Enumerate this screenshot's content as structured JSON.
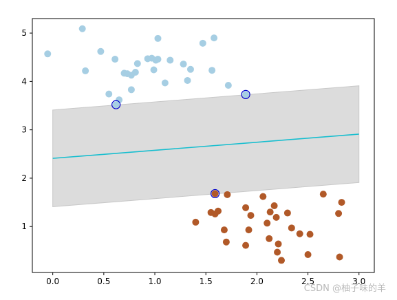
{
  "watermark": "CSDN @柚子味的羊",
  "colors": {
    "class_a": "#a6cee3",
    "class_b": "#b15928",
    "decision_line": "#17becf",
    "margin_fill": "#dcdcdc",
    "margin_edge": "#c8c8c8",
    "support_edge": "#0000cc"
  },
  "chart_data": {
    "type": "scatter",
    "title": "",
    "xlabel": "",
    "ylabel": "",
    "xlim": [
      -0.2,
      3.15
    ],
    "ylim": [
      0.05,
      5.3
    ],
    "xticks": [
      "0.0",
      "0.5",
      "1.0",
      "1.5",
      "2.0",
      "2.5",
      "3.0"
    ],
    "yticks": [
      "1",
      "2",
      "3",
      "4",
      "5"
    ],
    "grid": false,
    "series": [
      {
        "class": "upper-cluster",
        "color": "#a6cee3",
        "points": [
          [
            -0.05,
            4.57
          ],
          [
            0.29,
            5.09
          ],
          [
            0.32,
            4.22
          ],
          [
            0.47,
            4.62
          ],
          [
            0.55,
            3.74
          ],
          [
            0.61,
            4.46
          ],
          [
            0.65,
            3.62
          ],
          [
            0.7,
            4.17
          ],
          [
            0.73,
            4.16
          ],
          [
            0.77,
            4.13
          ],
          [
            0.77,
            3.83
          ],
          [
            0.81,
            4.19
          ],
          [
            0.83,
            4.37
          ],
          [
            0.93,
            4.47
          ],
          [
            0.97,
            4.48
          ],
          [
            0.99,
            4.24
          ],
          [
            1.01,
            4.44
          ],
          [
            1.03,
            4.46
          ],
          [
            1.03,
            4.89
          ],
          [
            1.1,
            3.97
          ],
          [
            1.15,
            4.44
          ],
          [
            1.28,
            4.36
          ],
          [
            1.32,
            4.02
          ],
          [
            1.35,
            4.25
          ],
          [
            1.47,
            4.79
          ],
          [
            1.56,
            4.23
          ],
          [
            1.58,
            4.9
          ],
          [
            1.72,
            3.92
          ],
          [
            0.62,
            3.52
          ],
          [
            1.89,
            3.73
          ]
        ]
      },
      {
        "class": "lower-cluster",
        "color": "#b15928",
        "points": [
          [
            1.4,
            1.09
          ],
          [
            1.55,
            1.29
          ],
          [
            1.59,
            1.26
          ],
          [
            1.59,
            1.68
          ],
          [
            1.62,
            1.32
          ],
          [
            1.68,
            0.93
          ],
          [
            1.7,
            0.68
          ],
          [
            1.71,
            1.66
          ],
          [
            1.89,
            1.39
          ],
          [
            1.89,
            0.61
          ],
          [
            1.92,
            0.93
          ],
          [
            1.94,
            1.23
          ],
          [
            2.06,
            1.62
          ],
          [
            2.1,
            1.07
          ],
          [
            2.12,
            0.75
          ],
          [
            2.13,
            1.3
          ],
          [
            2.17,
            1.43
          ],
          [
            2.19,
            1.19
          ],
          [
            2.2,
            0.47
          ],
          [
            2.21,
            0.64
          ],
          [
            2.24,
            0.3
          ],
          [
            2.3,
            1.28
          ],
          [
            2.34,
            0.97
          ],
          [
            2.42,
            0.85
          ],
          [
            2.5,
            0.42
          ],
          [
            2.52,
            0.84
          ],
          [
            2.65,
            1.67
          ],
          [
            2.8,
            1.27
          ],
          [
            2.81,
            0.37
          ],
          [
            2.83,
            1.5
          ]
        ]
      }
    ],
    "support_vectors": [
      [
        0.62,
        3.52
      ],
      [
        1.89,
        3.73
      ],
      [
        1.59,
        1.68
      ]
    ],
    "decision_line": {
      "x": [
        0.0,
        3.0
      ],
      "y": [
        2.41,
        2.91
      ]
    },
    "margin_band": {
      "x": [
        0.0,
        3.0
      ],
      "lower": [
        1.41,
        1.91
      ],
      "upper": [
        3.41,
        3.91
      ]
    }
  }
}
